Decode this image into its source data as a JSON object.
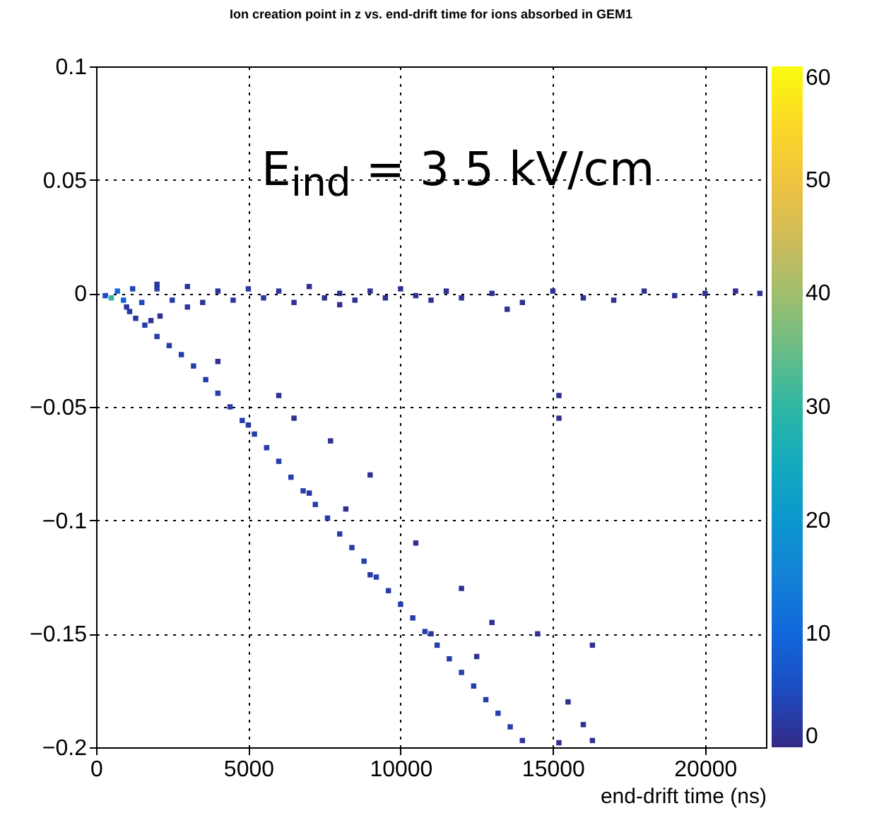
{
  "chart_data": {
    "type": "scatter",
    "title": "Ion creation point in z vs. end-drift time for ions absorbed in GEM1",
    "xlabel": "end-drift time (ns)",
    "annotations": [
      "E$_{ind}$ = 3.5 kV/cm"
    ],
    "xlim": [
      0,
      22000
    ],
    "xticks": [
      0,
      5000,
      10000,
      15000,
      20000
    ],
    "ylim": [
      -0.2,
      0.1
    ],
    "yticks": [
      -0.2,
      -0.15,
      -0.1,
      -0.05,
      0,
      0.05,
      0.1
    ],
    "clim": [
      0,
      60
    ],
    "cticks": [
      0,
      10,
      20,
      30,
      40,
      50,
      60
    ],
    "grid": true,
    "marker": "square",
    "x": [
      300,
      500,
      700,
      900,
      1200,
      1500,
      2000,
      2500,
      3000,
      3500,
      4000,
      4500,
      5000,
      5500,
      6000,
      6500,
      7000,
      7500,
      8000,
      8500,
      9000,
      9500,
      10000,
      10500,
      11000,
      11500,
      12000,
      13000,
      14000,
      15000,
      16000,
      17000,
      18000,
      19000,
      20000,
      21000,
      21800,
      1000,
      3000,
      2000,
      2100,
      1800,
      13500,
      8000,
      1100,
      1300,
      1600,
      2000,
      2400,
      2800,
      3200,
      3600,
      4000,
      4400,
      4800,
      5200,
      5600,
      6000,
      6400,
      6800,
      7200,
      7600,
      8000,
      8400,
      8800,
      9200,
      9600,
      10000,
      10400,
      10800,
      11200,
      11600,
      12000,
      12400,
      12800,
      13200,
      13600,
      14000,
      5000,
      7000,
      9000,
      11000,
      6500,
      7700,
      9000,
      8200,
      10500,
      12000,
      13000,
      14500,
      16300,
      15500,
      16000,
      12500,
      15200,
      16300,
      15200,
      15200,
      4000,
      6000
    ],
    "values": [
      -0.001,
      -0.002,
      0.001,
      -0.003,
      0.002,
      -0.004,
      0.002,
      -0.003,
      0.003,
      -0.004,
      0.001,
      -0.003,
      0.002,
      -0.002,
      0.001,
      -0.004,
      0.003,
      -0.002,
      0,
      -0.003,
      0.001,
      -0.002,
      0.002,
      -0.001,
      -0.003,
      0.001,
      -0.002,
      0,
      -0.004,
      0.001,
      -0.002,
      -0.003,
      0.001,
      -0.001,
      0,
      0.001,
      0,
      -0.006,
      -0.006,
      0.004,
      -0.01,
      -0.012,
      -0.007,
      -0.005,
      -0.008,
      -0.011,
      -0.014,
      -0.019,
      -0.023,
      -0.027,
      -0.032,
      -0.038,
      -0.044,
      -0.05,
      -0.056,
      -0.062,
      -0.068,
      -0.074,
      -0.081,
      -0.087,
      -0.093,
      -0.099,
      -0.106,
      -0.112,
      -0.118,
      -0.125,
      -0.131,
      -0.137,
      -0.143,
      -0.149,
      -0.155,
      -0.161,
      -0.167,
      -0.173,
      -0.179,
      -0.185,
      -0.191,
      -0.197,
      -0.058,
      -0.088,
      -0.124,
      -0.15,
      -0.055,
      -0.065,
      -0.08,
      -0.095,
      -0.11,
      -0.13,
      -0.145,
      -0.15,
      -0.155,
      -0.18,
      -0.19,
      -0.16,
      -0.198,
      -0.197,
      -0.045,
      -0.055,
      -0.03,
      -0.045
    ],
    "cvalues": [
      5,
      30,
      10,
      9,
      4,
      5,
      3,
      3,
      2,
      2,
      2,
      2,
      2,
      2,
      2,
      1,
      1,
      1,
      1,
      1,
      1,
      1,
      1,
      1,
      1,
      1,
      1,
      1,
      1,
      1,
      1,
      1,
      1,
      1,
      1,
      1,
      1,
      2,
      2,
      2,
      1,
      1,
      1,
      1,
      2,
      2,
      3,
      3,
      3,
      3,
      3,
      3,
      3,
      3,
      3,
      3,
      3,
      3,
      3,
      3,
      3,
      3,
      3,
      3,
      3,
      3,
      3,
      3,
      3,
      3,
      3,
      3,
      3,
      3,
      3,
      3,
      3,
      2,
      2,
      2,
      2,
      2,
      1,
      1,
      1,
      1,
      1,
      1,
      1,
      1,
      1,
      1,
      1,
      1,
      1,
      1,
      1,
      1,
      1,
      1
    ]
  }
}
